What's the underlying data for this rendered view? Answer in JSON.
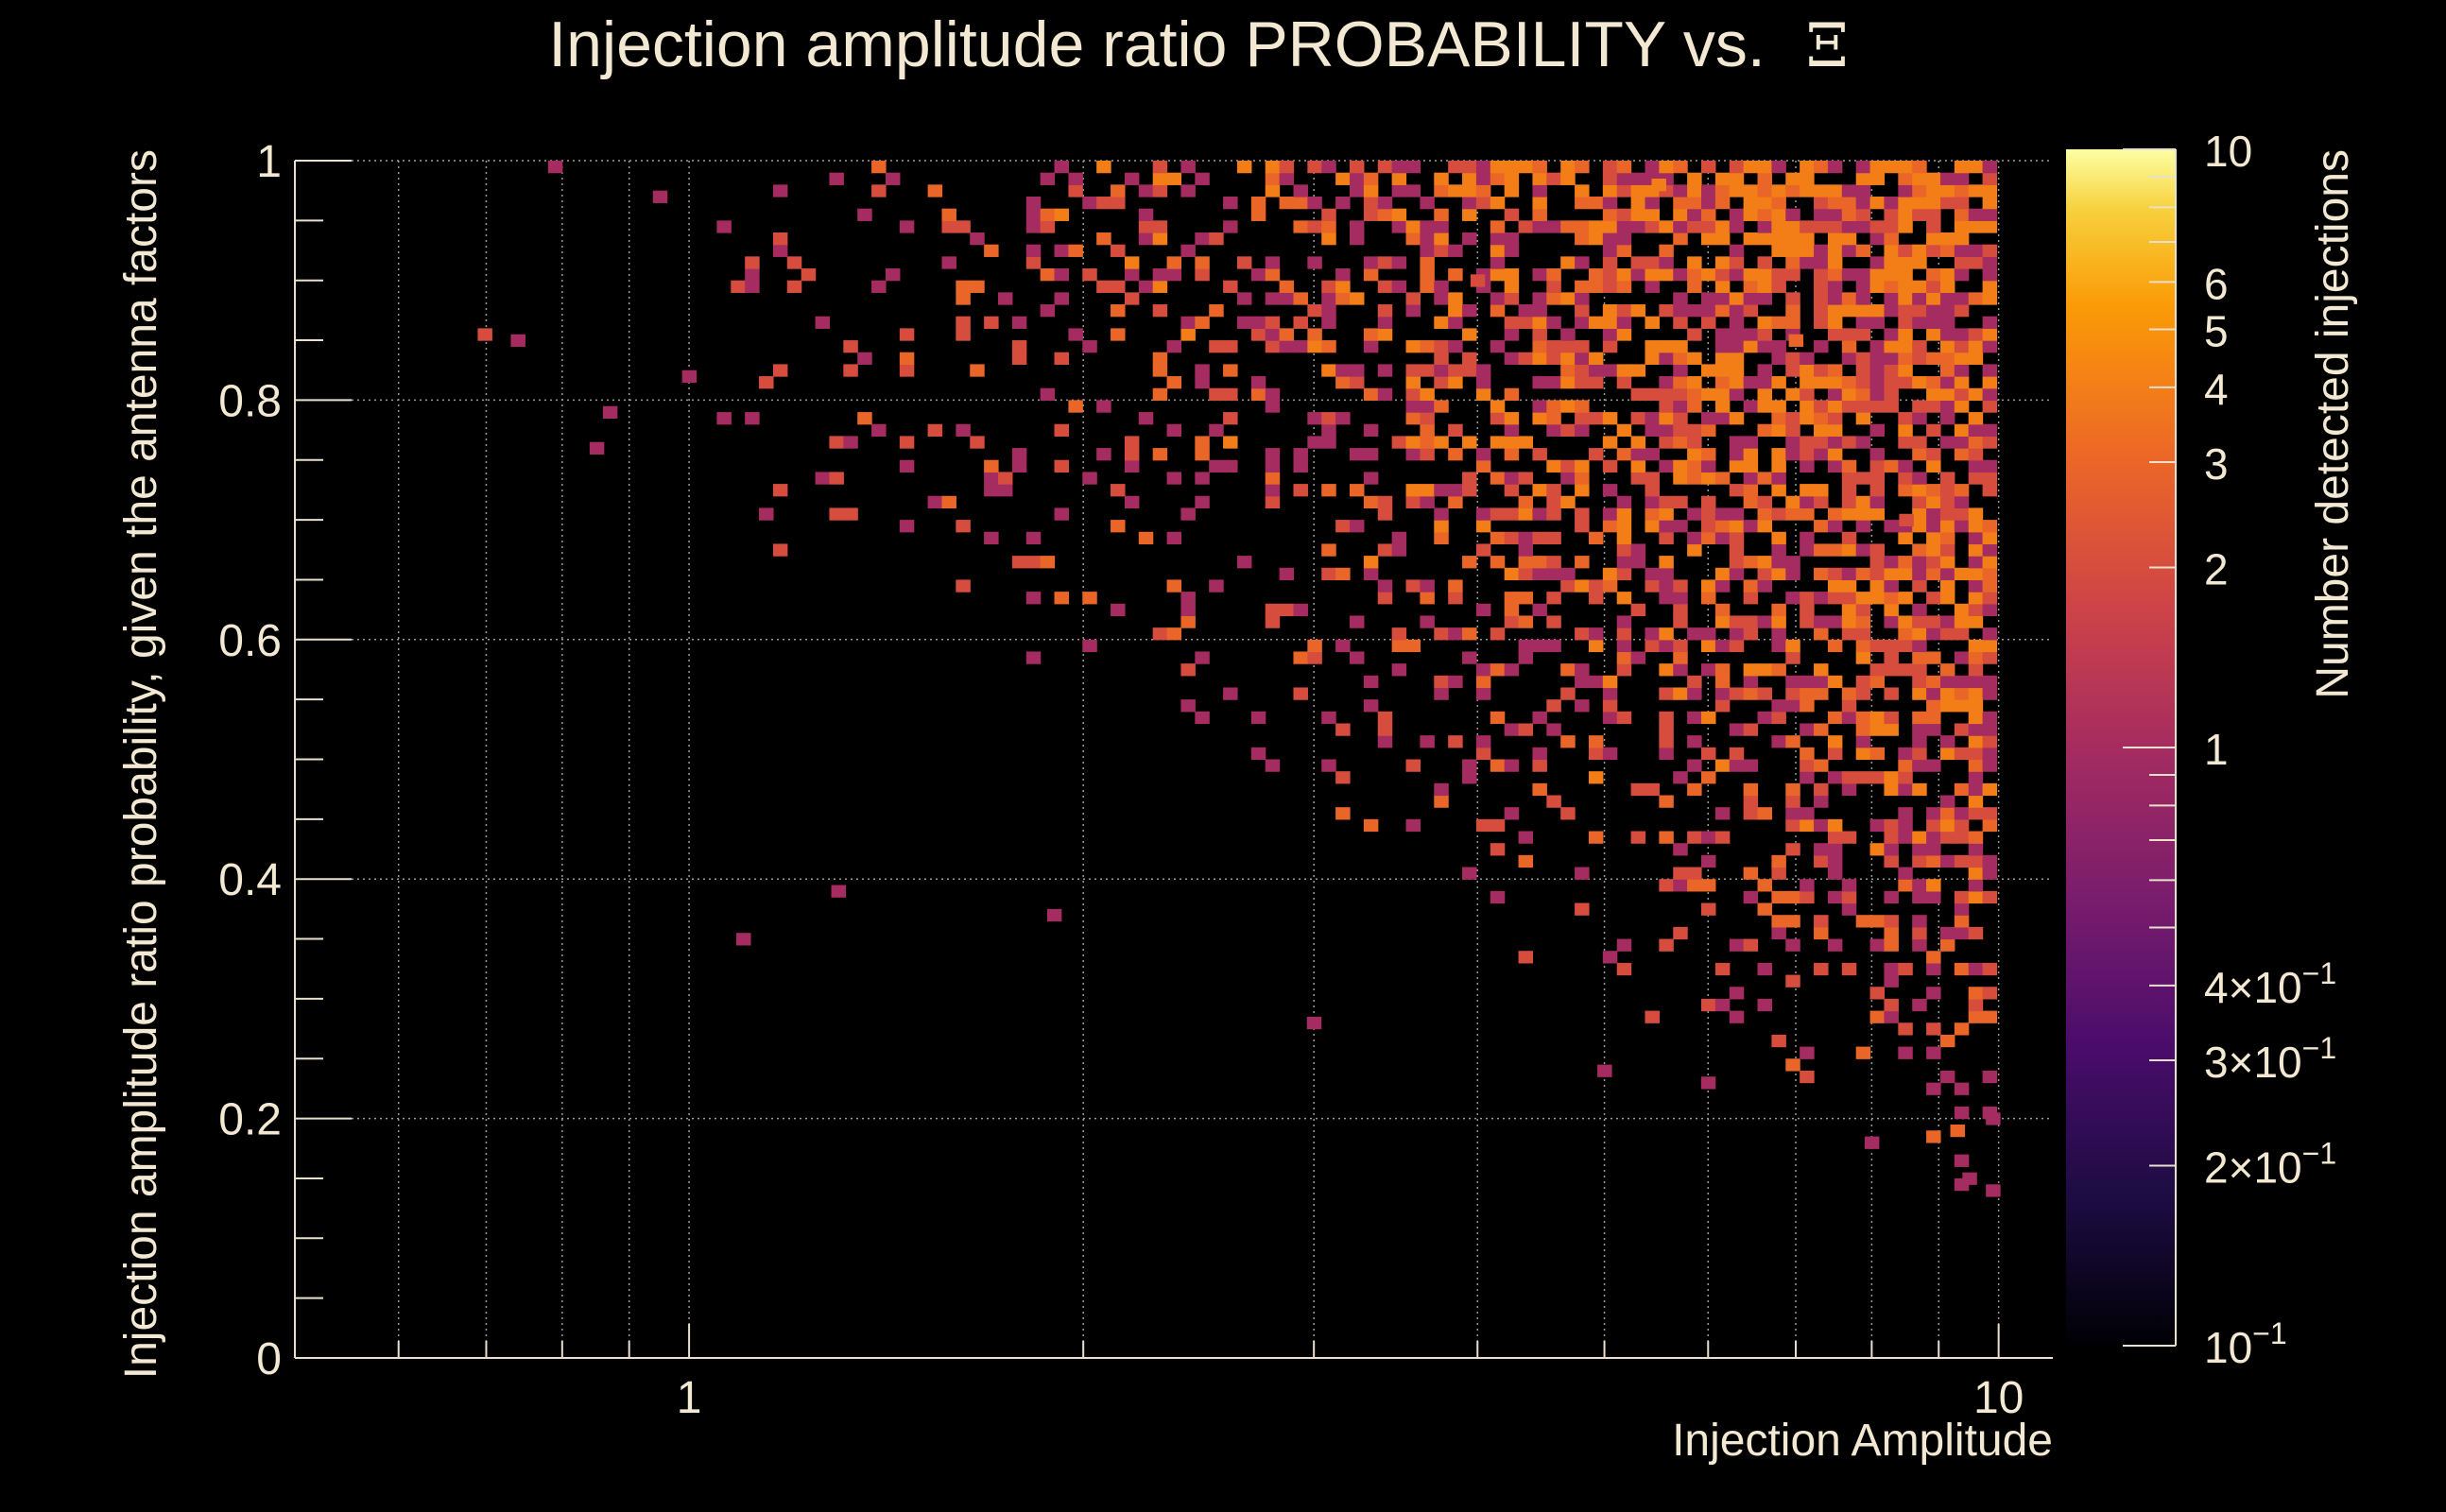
{
  "chart_data": {
    "type": "heatmap",
    "title": "Injection amplitude ratio PROBABILITY vs.",
    "title_symbol": "Ξ",
    "xlabel": "Injection Amplitude",
    "ylabel": "Injection amplitude ratio probability, given the antenna factors",
    "zlabel": "Number detected injections",
    "x_scale": "log",
    "x_range": [
      0.5,
      11
    ],
    "x_ticks": [
      {
        "value": 1,
        "label": "1"
      },
      {
        "value": 10,
        "label": "10"
      }
    ],
    "y_range": [
      0,
      1
    ],
    "y_ticks": [
      {
        "value": 0,
        "label": "0"
      },
      {
        "value": 0.2,
        "label": "0.2"
      },
      {
        "value": 0.4,
        "label": "0.4"
      },
      {
        "value": 0.6,
        "label": "0.6"
      },
      {
        "value": 0.8,
        "label": "0.8"
      },
      {
        "value": 1,
        "label": "1"
      }
    ],
    "z_scale": "log",
    "z_range": [
      0.1,
      10
    ],
    "z_ticks": [
      {
        "value": 10,
        "label": "10",
        "exp": ""
      },
      {
        "value": 6,
        "label": "6",
        "exp": ""
      },
      {
        "value": 5,
        "label": "5",
        "exp": ""
      },
      {
        "value": 4,
        "label": "4",
        "exp": ""
      },
      {
        "value": 3,
        "label": "3",
        "exp": ""
      },
      {
        "value": 2,
        "label": "2",
        "exp": ""
      },
      {
        "value": 1,
        "label": "1",
        "exp": ""
      },
      {
        "value": 0.4,
        "label": "4×10",
        "exp": "−1"
      },
      {
        "value": 0.3,
        "label": "3×10",
        "exp": "−1"
      },
      {
        "value": 0.2,
        "label": "2×10",
        "exp": "−1"
      },
      {
        "value": 0.1,
        "label": "10",
        "exp": "−1"
      }
    ],
    "grid": true,
    "colormap": "inferno",
    "bins": {
      "nx": 125,
      "ny": 100
    },
    "density_description": "Counts of 1–5 per bin; populated region lies above a diagonal boundary running from about x=1, y≈0.75 to x=10, y≈0.15; density increases with x and y.",
    "sample_cells": [
      {
        "x": 0.74,
        "y": 0.85,
        "z": 1
      },
      {
        "x": 0.87,
        "y": 0.79,
        "z": 1
      },
      {
        "x": 0.85,
        "y": 0.76,
        "z": 1
      },
      {
        "x": 0.95,
        "y": 0.97,
        "z": 1
      },
      {
        "x": 1.0,
        "y": 0.82,
        "z": 1
      },
      {
        "x": 1.1,
        "y": 0.35,
        "z": 1
      },
      {
        "x": 1.3,
        "y": 0.39,
        "z": 1
      },
      {
        "x": 1.9,
        "y": 0.37,
        "z": 1
      },
      {
        "x": 3.0,
        "y": 0.28,
        "z": 1
      },
      {
        "x": 5.0,
        "y": 0.24,
        "z": 1
      },
      {
        "x": 6.0,
        "y": 0.23,
        "z": 1
      },
      {
        "x": 8.0,
        "y": 0.18,
        "z": 1
      },
      {
        "x": 9.5,
        "y": 0.15,
        "z": 1
      },
      {
        "x": 9.9,
        "y": 0.14,
        "z": 1
      },
      {
        "x": 9.3,
        "y": 0.19,
        "z": 3
      },
      {
        "x": 9.9,
        "y": 0.2,
        "z": 1
      },
      {
        "x": 5.5,
        "y": 0.98,
        "z": 4
      },
      {
        "x": 7.0,
        "y": 0.85,
        "z": 3
      },
      {
        "x": 8.5,
        "y": 0.7,
        "z": 2
      },
      {
        "x": 4.0,
        "y": 0.9,
        "z": 2
      }
    ]
  },
  "colors": {
    "background": "#000000",
    "text": "#f3e9d2",
    "axis": "#e8dfcc",
    "grid": "#9a9a9a"
  }
}
